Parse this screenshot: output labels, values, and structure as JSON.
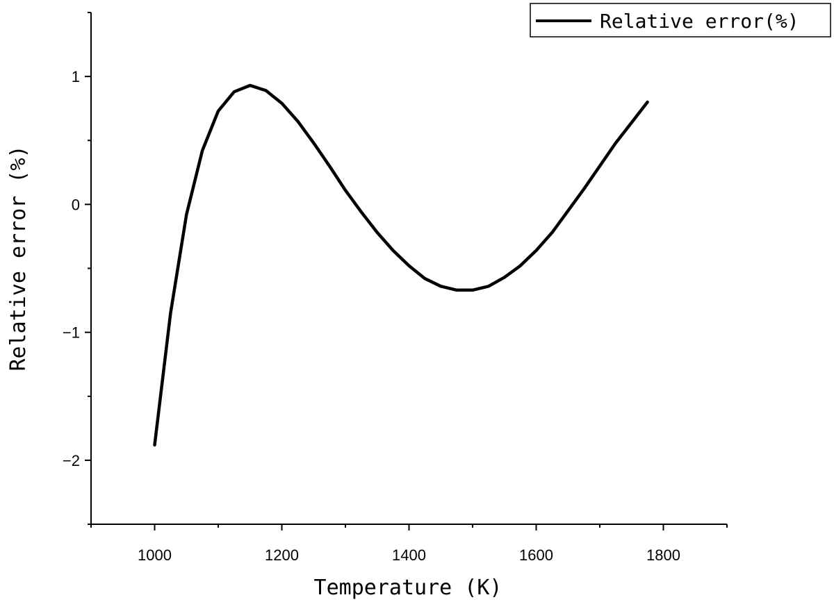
{
  "chart_data": {
    "type": "line",
    "title": "",
    "xlabel": "Temperature (K)",
    "ylabel": "Relative error (%)",
    "xlim": [
      900,
      1900
    ],
    "ylim": [
      -2.5,
      1.5
    ],
    "x_ticks": [
      1000,
      1200,
      1400,
      1600,
      1800
    ],
    "y_ticks": [
      -2,
      -1,
      0,
      1
    ],
    "grid": false,
    "legend_position": "top-right",
    "series": [
      {
        "name": "Relative error(%)",
        "color": "#000000",
        "x": [
          1000,
          1025,
          1050,
          1075,
          1100,
          1125,
          1150,
          1175,
          1200,
          1225,
          1250,
          1275,
          1300,
          1325,
          1350,
          1375,
          1400,
          1425,
          1450,
          1475,
          1500,
          1525,
          1550,
          1575,
          1600,
          1625,
          1650,
          1675,
          1700,
          1725,
          1750,
          1775
        ],
        "y": [
          -1.88,
          -0.85,
          -0.08,
          0.42,
          0.73,
          0.88,
          0.93,
          0.89,
          0.79,
          0.65,
          0.48,
          0.3,
          0.11,
          -0.06,
          -0.22,
          -0.36,
          -0.48,
          -0.58,
          -0.64,
          -0.67,
          -0.67,
          -0.64,
          -0.57,
          -0.48,
          -0.36,
          -0.22,
          -0.05,
          0.12,
          0.3,
          0.48,
          0.64,
          0.8
        ]
      }
    ]
  }
}
